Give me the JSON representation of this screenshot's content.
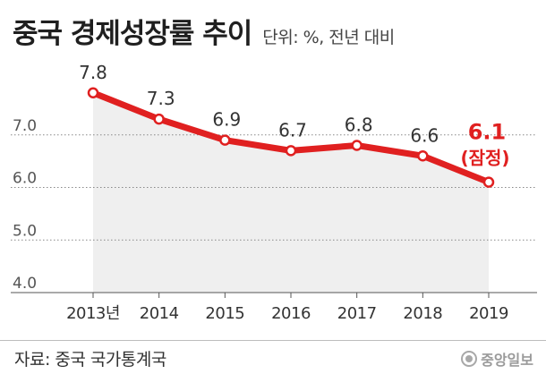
{
  "header": {
    "title": "중국 경제성장률 추이",
    "unit": "단위: %, 전년 대비"
  },
  "footer": {
    "source": "자료: 중국 국가통계국",
    "logo": "중앙일보"
  },
  "colors": {
    "line": "#e02020",
    "fill": "#efefef",
    "highlight": "#e02020",
    "text": "#222222",
    "grid": "#888888"
  },
  "chart_data": {
    "type": "line",
    "title": "중국 경제성장률 추이",
    "unit_note": "단위: %, 전년 대비",
    "categories": [
      "2013년",
      "2014",
      "2015",
      "2016",
      "2017",
      "2018",
      "2019"
    ],
    "series": [
      {
        "values": [
          7.8,
          7.3,
          6.9,
          6.7,
          6.8,
          6.6,
          6.1
        ]
      }
    ],
    "data_labels": [
      "7.8",
      "7.3",
      "6.9",
      "6.7",
      "6.8",
      "6.6",
      "6.1"
    ],
    "highlight_note": "(잠정)",
    "y_ticks": [
      "4.0",
      "5.0",
      "6.0",
      "7.0"
    ],
    "ylim": [
      4.0,
      8.0
    ],
    "grid": true,
    "legend": "none"
  }
}
